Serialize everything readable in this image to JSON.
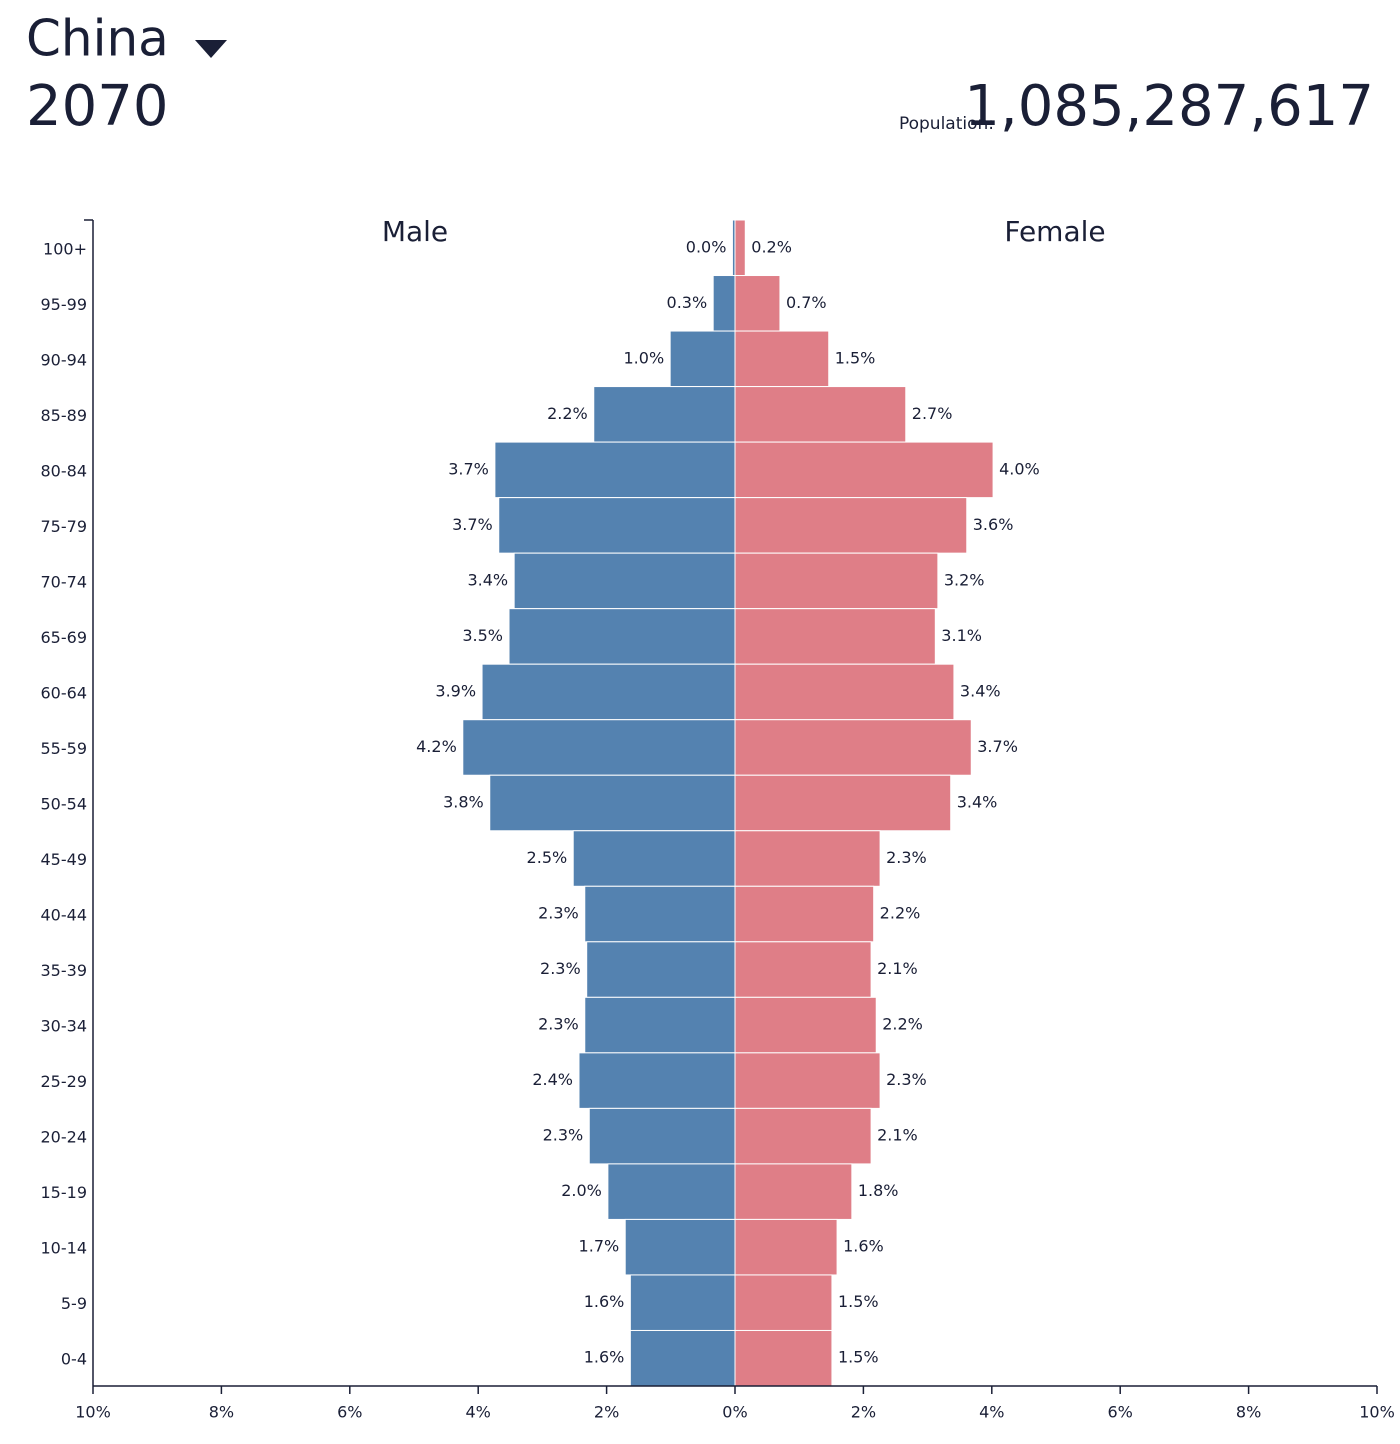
{
  "chart_data": {
    "type": "pyramid",
    "title": "China",
    "subtitle": "2070",
    "total_label": "Population:",
    "total_value": "1,085,287,617",
    "categories": [
      "100+",
      "95-99",
      "90-94",
      "85-89",
      "80-84",
      "75-79",
      "70-74",
      "65-69",
      "60-64",
      "55-59",
      "50-54",
      "45-49",
      "40-44",
      "35-39",
      "30-34",
      "25-29",
      "20-24",
      "15-19",
      "10-14",
      "5-9",
      "0-4"
    ],
    "series": [
      {
        "name": "Male",
        "color": "#5482b0",
        "side": "left",
        "values": [
          0.04,
          0.34,
          1.01,
          2.2,
          3.74,
          3.68,
          3.44,
          3.52,
          3.94,
          4.24,
          3.82,
          2.52,
          2.34,
          2.31,
          2.34,
          2.43,
          2.27,
          1.98,
          1.71,
          1.63,
          1.63
        ],
        "value_labels": [
          "0.0%",
          "0.3%",
          "1.0%",
          "2.2%",
          "3.7%",
          "3.7%",
          "3.4%",
          "3.5%",
          "3.9%",
          "4.2%",
          "3.8%",
          "2.5%",
          "2.3%",
          "2.3%",
          "2.3%",
          "2.4%",
          "2.3%",
          "2.0%",
          "1.7%",
          "1.6%",
          "1.6%"
        ]
      },
      {
        "name": "Female",
        "color": "#df7e87",
        "side": "right",
        "values": [
          0.16,
          0.7,
          1.46,
          2.66,
          4.02,
          3.61,
          3.16,
          3.12,
          3.41,
          3.68,
          3.36,
          2.26,
          2.16,
          2.12,
          2.2,
          2.26,
          2.12,
          1.82,
          1.59,
          1.51,
          1.51
        ],
        "value_labels": [
          "0.2%",
          "0.7%",
          "1.5%",
          "2.7%",
          "4.0%",
          "3.6%",
          "3.2%",
          "3.1%",
          "3.4%",
          "3.7%",
          "3.4%",
          "2.3%",
          "2.2%",
          "2.1%",
          "2.2%",
          "2.3%",
          "2.1%",
          "1.8%",
          "1.6%",
          "1.5%",
          "1.5%"
        ]
      }
    ],
    "xlim": [
      -10,
      10
    ],
    "xticks": [
      {
        "value": -10,
        "label": "10%"
      },
      {
        "value": -8,
        "label": "8%"
      },
      {
        "value": -6,
        "label": "6%"
      },
      {
        "value": -4,
        "label": "4%"
      },
      {
        "value": -2,
        "label": "2%"
      },
      {
        "value": 0,
        "label": "0%"
      },
      {
        "value": 2,
        "label": "2%"
      },
      {
        "value": 4,
        "label": "4%"
      },
      {
        "value": 6,
        "label": "6%"
      },
      {
        "value": 8,
        "label": "8%"
      },
      {
        "value": 10,
        "label": "10%"
      }
    ]
  }
}
